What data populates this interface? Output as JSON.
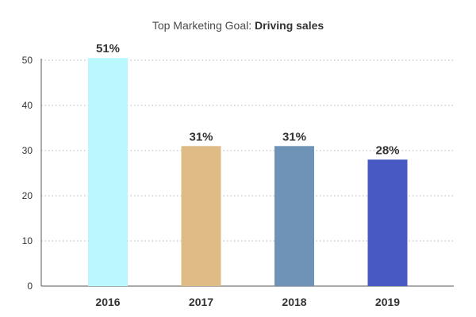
{
  "chart_data": {
    "type": "bar",
    "title_prefix": "Top Marketing Goal:",
    "title_emphasis": "Driving sales",
    "categories": [
      "2016",
      "2017",
      "2018",
      "2019"
    ],
    "values": [
      51,
      31,
      31,
      28
    ],
    "data_labels": [
      "51%",
      "31%",
      "31%",
      "28%"
    ],
    "bar_colors": [
      "#b9f8fd",
      "#dfbb85",
      "#6e93b7",
      "#4859c4"
    ],
    "ylim": [
      0,
      50
    ],
    "yticks": [
      0,
      10,
      20,
      30,
      40,
      50
    ],
    "ytick_labels": [
      "0",
      "10",
      "20",
      "30",
      "40",
      "50"
    ],
    "xlabel": "",
    "ylabel": "",
    "grid": true,
    "grid_style": "dotted",
    "legend": "none"
  }
}
